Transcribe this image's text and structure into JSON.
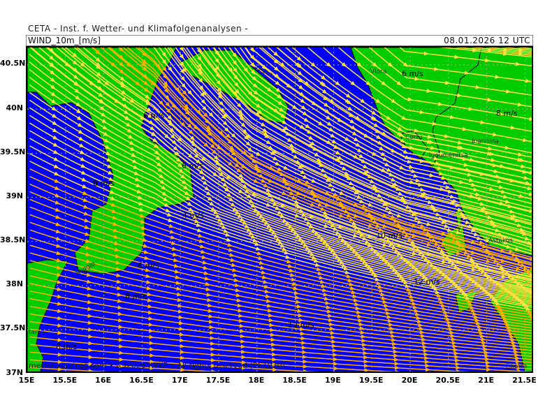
{
  "header": {
    "title": "CETA - Inst. f. Wetter- und Klimafolgenanalysen -",
    "field": "WIND_10m_[m/s]",
    "valid_time": "08.01.2026 12 UTC"
  },
  "map": {
    "region": "Ionian Sea / Southern Italy / Western Greece",
    "lon_range": [
      15,
      21.7
    ],
    "lat_range": [
      37,
      40.7
    ],
    "lat_ticks": [
      "40.5N",
      "40N",
      "39.5N",
      "39N",
      "38.5N",
      "38N",
      "37.5N",
      "37N"
    ],
    "lon_ticks": [
      "15E",
      "15.5E",
      "16E",
      "16.5E",
      "17E",
      "17.5E",
      "18E",
      "18.5E",
      "19E",
      "19.5E",
      "20E",
      "20.5E",
      "21E",
      "21.5E"
    ],
    "colors": {
      "sea": "#0000ff",
      "land": "#00cc00",
      "streamline_fast": "#ffb000",
      "streamline_mid": "#ffe040",
      "streamline_slow": "#ffffff",
      "grid": "#aaaaaa"
    },
    "wind_labels": [
      "6 m/s",
      "8 m/s",
      "6 m/s",
      "6 m/s",
      "8 m/s",
      "4 m/s",
      "6 m/s",
      "8 m/s",
      "8 m/s",
      "10 m/s",
      "12 m/s",
      "12 m/s"
    ],
    "cities": [
      "Vlora",
      "Corfu",
      "Igoumenitsa",
      "Ioannina",
      "Lecce",
      "Reggio",
      "Astakos",
      "Catania",
      "Filiatra"
    ],
    "copyright": "meteo-services.com • (c)2026 IWKF • All rights reserved (061030)"
  }
}
